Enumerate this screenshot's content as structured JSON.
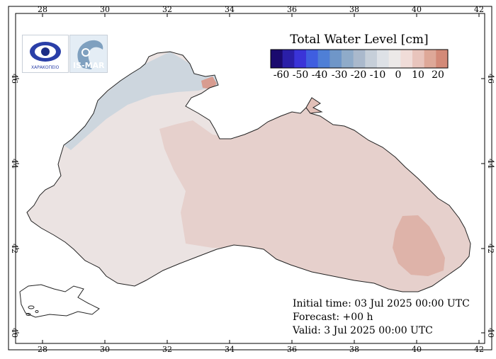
{
  "legend": {
    "title": "Total Water Level [cm]",
    "ticks": [
      "-60",
      "-50",
      "-40",
      "-30",
      "-20",
      "-10",
      "0",
      "10",
      "20"
    ],
    "colors": [
      "#1a0a6e",
      "#2a1fa8",
      "#3a34d8",
      "#3f5ee0",
      "#4f7fd6",
      "#6f96c8",
      "#8fabc9",
      "#aab9cc",
      "#c6cfd9",
      "#dde1e6",
      "#ece9e8",
      "#f0dcd8",
      "#e8c4bc",
      "#dea898",
      "#d38a78"
    ]
  },
  "axes": {
    "lon_ticks": [
      "28",
      "30",
      "32",
      "34",
      "36",
      "38",
      "40",
      "42"
    ],
    "lat_ticks": [
      "40",
      "42",
      "44",
      "46"
    ]
  },
  "info": {
    "initial": "Initial time: 03 Jul 2025 00:00 UTC",
    "forecast": "Forecast: +00 h",
    "valid": "Valid:  3 Jul 2025 00:00 UTC"
  },
  "logos": {
    "left_text": "ΧΑΡΑΚΟΠΕΙΟ",
    "right_text": "IS-MAR"
  },
  "colors": {
    "sea_west": "#ebe3e2",
    "sea_east": "#e6d0cc",
    "sea_hotspot": "#deb3a9",
    "sea_shelf": "#cdd6de",
    "land": "#ffffff",
    "coast": "#222222"
  }
}
